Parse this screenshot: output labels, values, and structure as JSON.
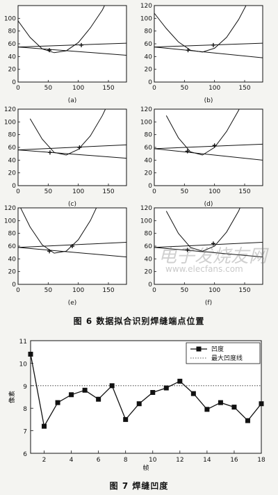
{
  "figure6": {
    "caption": "图 6   数据拟合识别焊缝端点位置",
    "panels": [
      {
        "label": "(a)",
        "ylim": [
          0,
          120
        ],
        "yticks": [
          0,
          20,
          40,
          60,
          80,
          100
        ],
        "xticks": [
          0,
          50,
          100,
          150
        ],
        "rising_line": [
          [
            0,
            55
          ],
          [
            180,
            61
          ]
        ],
        "falling_line": [
          [
            0,
            55
          ],
          [
            180,
            42
          ]
        ],
        "parabola": {
          "x": [
            0,
            20,
            40,
            60,
            80,
            100,
            120,
            140,
            160
          ],
          "y": [
            96,
            70,
            52,
            46,
            49,
            62,
            85,
            113,
            152
          ]
        },
        "markers": [
          [
            52,
            50
          ],
          [
            105,
            58
          ]
        ]
      },
      {
        "label": "(b)",
        "ylim": [
          0,
          120
        ],
        "yticks": [
          0,
          20,
          40,
          60,
          80,
          100,
          120
        ],
        "xticks": [
          0,
          50,
          100,
          150
        ],
        "rising_line": [
          [
            0,
            55
          ],
          [
            180,
            61
          ]
        ],
        "falling_line": [
          [
            0,
            55
          ],
          [
            180,
            38
          ]
        ],
        "parabola": {
          "x": [
            0,
            20,
            40,
            60,
            80,
            100,
            120,
            140,
            160
          ],
          "y": [
            108,
            84,
            63,
            50,
            47,
            53,
            70,
            98,
            134
          ]
        },
        "markers": [
          [
            56,
            50
          ],
          [
            98,
            58
          ]
        ]
      },
      {
        "label": "(c)",
        "ylim": [
          0,
          120
        ],
        "yticks": [
          0,
          20,
          40,
          60,
          80,
          100,
          120
        ],
        "xticks": [
          0,
          50,
          100,
          150
        ],
        "rising_line": [
          [
            0,
            56
          ],
          [
            180,
            64
          ]
        ],
        "falling_line": [
          [
            0,
            56
          ],
          [
            180,
            43
          ]
        ],
        "parabola": {
          "x": [
            20,
            40,
            60,
            80,
            100,
            120,
            140,
            160
          ],
          "y": [
            105,
            73,
            52,
            48,
            57,
            78,
            110,
            150
          ]
        },
        "markers": [
          [
            53,
            52
          ],
          [
            102,
            60
          ]
        ]
      },
      {
        "label": "(d)",
        "ylim": [
          0,
          120
        ],
        "yticks": [
          0,
          20,
          40,
          60,
          80,
          100,
          120
        ],
        "xticks": [
          0,
          50,
          100,
          150
        ],
        "rising_line": [
          [
            0,
            58
          ],
          [
            180,
            65
          ]
        ],
        "falling_line": [
          [
            0,
            58
          ],
          [
            180,
            40
          ]
        ],
        "parabola": {
          "x": [
            20,
            40,
            60,
            80,
            100,
            120,
            140,
            160
          ],
          "y": [
            110,
            75,
            53,
            48,
            60,
            85,
            118,
            160
          ]
        },
        "markers": [
          [
            55,
            54
          ],
          [
            100,
            63
          ]
        ]
      },
      {
        "label": "(e)",
        "ylim": [
          0,
          120
        ],
        "yticks": [
          0,
          20,
          40,
          60,
          80,
          100,
          120
        ],
        "xticks": [
          0,
          50,
          100,
          150
        ],
        "rising_line": [
          [
            0,
            58
          ],
          [
            180,
            66
          ]
        ],
        "falling_line": [
          [
            0,
            58
          ],
          [
            180,
            43
          ]
        ],
        "parabola": {
          "x": [
            0,
            20,
            40,
            60,
            80,
            100,
            120,
            140
          ],
          "y": [
            128,
            90,
            62,
            49,
            52,
            70,
            100,
            140
          ]
        },
        "markers": [
          [
            52,
            52
          ],
          [
            90,
            60
          ]
        ]
      },
      {
        "label": "(f)",
        "ylim": [
          0,
          120
        ],
        "yticks": [
          0,
          20,
          40,
          60,
          80,
          100,
          120
        ],
        "xticks": [
          0,
          50,
          100,
          150
        ],
        "rising_line": [
          [
            0,
            58
          ],
          [
            180,
            66
          ]
        ],
        "falling_line": [
          [
            0,
            58
          ],
          [
            180,
            43
          ]
        ],
        "parabola": {
          "x": [
            20,
            40,
            60,
            80,
            100,
            120,
            140,
            160
          ],
          "y": [
            115,
            80,
            58,
            52,
            60,
            82,
            115,
            158
          ]
        },
        "markers": [
          [
            55,
            54
          ],
          [
            98,
            64
          ]
        ]
      }
    ]
  },
  "figure7": {
    "caption": "图 7   焊缝凹度",
    "xlabel": "帧",
    "ylabel": "像素",
    "legend_series": "凹度",
    "legend_threshold": "最大凹度线",
    "xlim": [
      1,
      18
    ],
    "ylim": [
      6,
      11
    ],
    "xticks": [
      2,
      4,
      6,
      8,
      10,
      12,
      14,
      16,
      18
    ],
    "yticks": [
      6,
      7,
      8,
      9,
      10,
      11
    ]
  },
  "chart_data": {
    "type": "line",
    "xlabel": "帧",
    "ylabel": "像素",
    "x": [
      1,
      2,
      3,
      4,
      5,
      6,
      7,
      8,
      9,
      10,
      11,
      12,
      13,
      14,
      15,
      16,
      17,
      18
    ],
    "series": [
      {
        "name": "凹度",
        "values": [
          10.4,
          7.2,
          8.25,
          8.6,
          8.8,
          8.4,
          9.0,
          7.5,
          8.2,
          8.7,
          8.9,
          9.2,
          8.65,
          7.95,
          8.25,
          8.05,
          7.45,
          8.2
        ]
      },
      {
        "name": "最大凹度线",
        "values": [
          9,
          9,
          9,
          9,
          9,
          9,
          9,
          9,
          9,
          9,
          9,
          9,
          9,
          9,
          9,
          9,
          9,
          9
        ]
      }
    ],
    "xlim": [
      1,
      18
    ],
    "ylim": [
      6,
      11
    ],
    "legend": "top-right",
    "grid": false
  },
  "watermark": {
    "text": "电子发烧友网",
    "url": "www.elecfans.com"
  }
}
